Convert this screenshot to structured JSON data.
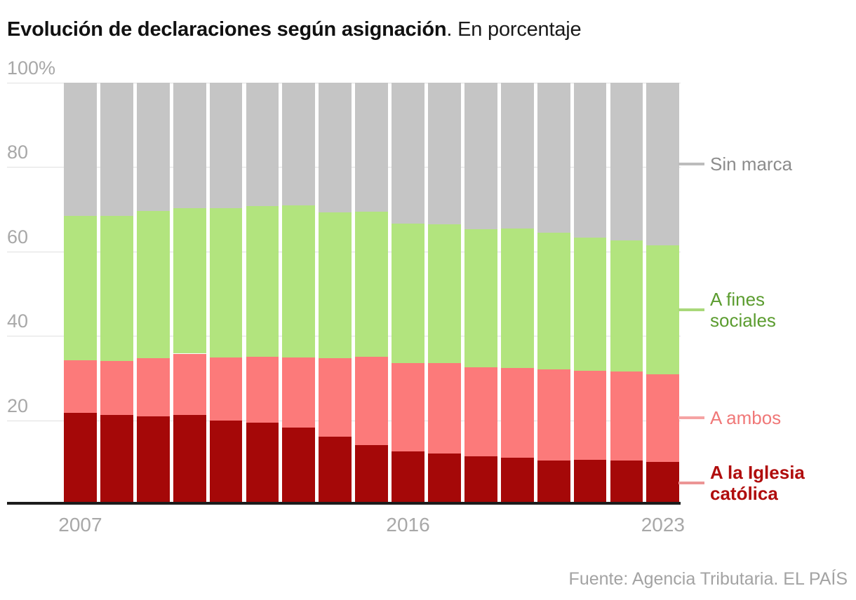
{
  "header": {
    "title_bold": "Evolución de declaraciones según asignación",
    "title_rest": ". En porcentaje"
  },
  "chart_data": {
    "type": "bar",
    "stacked": true,
    "title": "Evolución de declaraciones según asignación. En porcentaje",
    "xlabel": "",
    "ylabel": "",
    "ylim": [
      0,
      100
    ],
    "grid": true,
    "categories": [
      2007,
      2008,
      2009,
      2010,
      2011,
      2012,
      2013,
      2014,
      2015,
      2016,
      2017,
      2018,
      2019,
      2020,
      2021,
      2022,
      2023
    ],
    "series": [
      {
        "name": "A la Iglesia católica",
        "color": "#a50808",
        "values": [
          21.7,
          21.2,
          20.9,
          21.3,
          20.0,
          19.4,
          18.2,
          16.1,
          14.2,
          12.7,
          12.1,
          11.5,
          11.1,
          10.5,
          10.6,
          10.5,
          10.2
        ]
      },
      {
        "name": "A ambos",
        "color": "#fc7a7a",
        "values": [
          12.6,
          12.9,
          13.9,
          14.5,
          14.9,
          15.6,
          16.7,
          18.7,
          20.9,
          20.9,
          21.4,
          21.1,
          21.3,
          21.6,
          21.1,
          21.1,
          20.7
        ]
      },
      {
        "name": "A fines sociales",
        "color": "#b2e47e",
        "values": [
          34.1,
          34.3,
          34.8,
          34.4,
          35.4,
          35.7,
          36.0,
          34.4,
          34.3,
          33.0,
          32.9,
          32.7,
          33.1,
          32.3,
          31.6,
          31.1,
          30.6
        ]
      },
      {
        "name": "Sin marca",
        "color": "#c5c5c5",
        "values": [
          31.6,
          31.6,
          30.4,
          29.8,
          29.7,
          29.3,
          29.1,
          30.8,
          30.6,
          33.4,
          33.6,
          34.7,
          34.5,
          35.6,
          36.7,
          37.3,
          38.5
        ]
      }
    ],
    "yticks": [
      {
        "label": "100%",
        "value": 100
      },
      {
        "label": "80",
        "value": 80
      },
      {
        "label": "60",
        "value": 60
      },
      {
        "label": "40",
        "value": 40
      },
      {
        "label": "20",
        "value": 20
      }
    ],
    "xticks": [
      {
        "label": "2007",
        "index": 0
      },
      {
        "label": "2016",
        "index": 9
      },
      {
        "label": "2023",
        "index": 16
      }
    ],
    "legend_position": "right"
  },
  "legend": {
    "items": [
      {
        "series": 3,
        "lines": [
          "Sin marca"
        ],
        "text_color": "#8c8c8c",
        "tick_color": "#bcbcbc",
        "bold": false
      },
      {
        "series": 2,
        "lines": [
          "A fines",
          "sociales"
        ],
        "text_color": "#5b9c2f",
        "tick_color": "#a9d87a",
        "bold": false
      },
      {
        "series": 1,
        "lines": [
          "A ambos"
        ],
        "text_color": "#f07878",
        "tick_color": "#f5a3a3",
        "bold": false
      },
      {
        "series": 0,
        "lines": [
          "A la Iglesia",
          "católica"
        ],
        "text_color": "#b00d0d",
        "tick_color": "#ec9595",
        "bold": true
      }
    ]
  },
  "footer": {
    "source": "Fuente: Agencia Tributaria. EL PAÍS"
  }
}
